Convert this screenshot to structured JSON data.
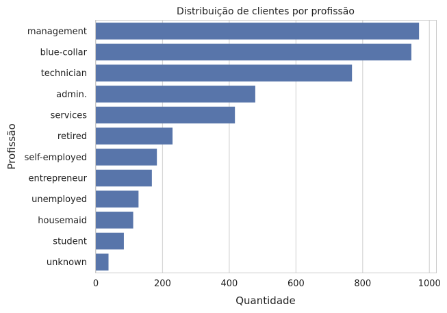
{
  "chart_data": {
    "type": "bar",
    "orientation": "horizontal",
    "title": "Distribuição de clientes por profissão",
    "xlabel": "Quantidade",
    "ylabel": "Profissão",
    "categories": [
      "management",
      "blue-collar",
      "technician",
      "admin.",
      "services",
      "retired",
      "self-employed",
      "entrepreneur",
      "unemployed",
      "housemaid",
      "student",
      "unknown"
    ],
    "values": [
      969,
      946,
      768,
      478,
      417,
      230,
      183,
      168,
      128,
      112,
      84,
      38
    ],
    "xlim": [
      0,
      1020
    ],
    "xticks": [
      0,
      200,
      400,
      600,
      800,
      1000
    ],
    "grid": true,
    "bar_color": "#5875aa"
  }
}
